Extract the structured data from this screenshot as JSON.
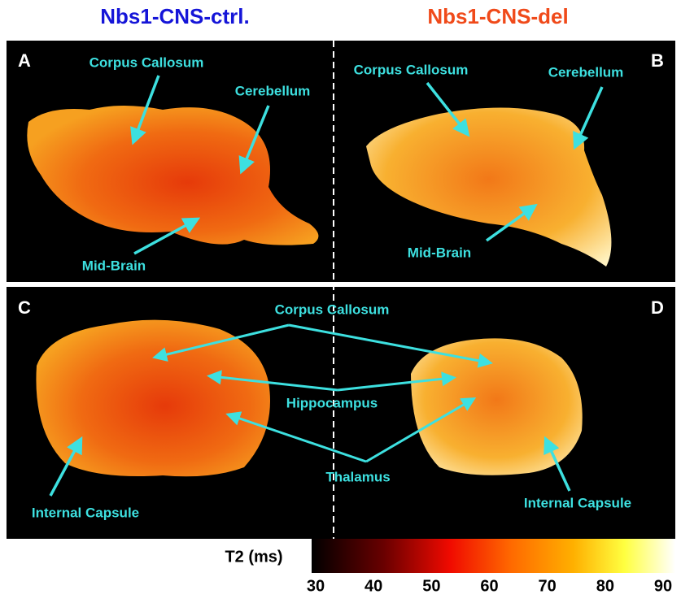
{
  "header": {
    "left_title": "Nbs1-CNS-ctrl.",
    "right_title": "Nbs1-CNS-del"
  },
  "panels": [
    {
      "label": "A",
      "annotations": [
        "Corpus Callosum",
        "Cerebellum",
        "Mid-Brain"
      ]
    },
    {
      "label": "B",
      "annotations": [
        "Corpus Callosum",
        "Cerebellum",
        "Mid-Brain"
      ]
    },
    {
      "label": "C",
      "annotations": [
        "Internal Capsule"
      ]
    },
    {
      "label": "D",
      "annotations": [
        "Internal Capsule"
      ]
    }
  ],
  "shared_annotations": [
    "Corpus Callosum",
    "Hippocampus",
    "Thalamus"
  ],
  "colorbar": {
    "label": "T2 (ms)",
    "lim": [
      30,
      90
    ],
    "ticks": [
      30,
      40,
      50,
      60,
      70,
      80,
      90
    ]
  }
}
